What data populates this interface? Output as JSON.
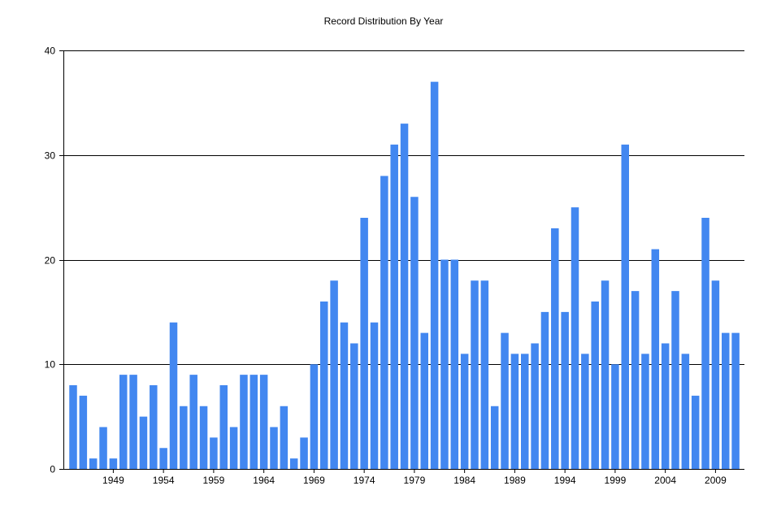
{
  "chart_data": {
    "type": "bar",
    "title": "Record Distribution By Year",
    "xlabel": "",
    "ylabel": "",
    "ylim": [
      0,
      40
    ],
    "yticks": [
      0,
      10,
      20,
      30,
      40
    ],
    "x_tick_labels": [
      "1949",
      "1954",
      "1959",
      "1964",
      "1969",
      "1974",
      "1979",
      "1984",
      "1989",
      "1994",
      "1999",
      "2004",
      "2009"
    ],
    "grid": true,
    "bar_color": "#4287f0",
    "categories": [
      "1945",
      "1946",
      "1947",
      "1948",
      "1949",
      "1950",
      "1951",
      "1952",
      "1953",
      "1954",
      "1955",
      "1956",
      "1957",
      "1958",
      "1959",
      "1960",
      "1961",
      "1962",
      "1963",
      "1964",
      "1965",
      "1966",
      "1967",
      "1968",
      "1969",
      "1970",
      "1971",
      "1972",
      "1973",
      "1974",
      "1975",
      "1976",
      "1977",
      "1978",
      "1979",
      "1980",
      "1981",
      "1982",
      "1983",
      "1984",
      "1985",
      "1986",
      "1987",
      "1988",
      "1989",
      "1990",
      "1991",
      "1992",
      "1993",
      "1994",
      "1995",
      "1996",
      "1997",
      "1998",
      "1999",
      "2000",
      "2001",
      "2002",
      "2003",
      "2004",
      "2005",
      "2006",
      "2007",
      "2008",
      "2009",
      "2010",
      "2011"
    ],
    "values": [
      8,
      7,
      1,
      4,
      1,
      9,
      9,
      5,
      8,
      2,
      14,
      6,
      9,
      6,
      3,
      8,
      4,
      9,
      9,
      9,
      4,
      6,
      1,
      3,
      10,
      16,
      18,
      14,
      12,
      24,
      14,
      28,
      31,
      33,
      26,
      13,
      37,
      20,
      20,
      11,
      18,
      18,
      6,
      13,
      11,
      11,
      12,
      15,
      23,
      15,
      25,
      11,
      16,
      18,
      10,
      31,
      17,
      11,
      21,
      12,
      17,
      11,
      7,
      24,
      18,
      13,
      13
    ]
  }
}
